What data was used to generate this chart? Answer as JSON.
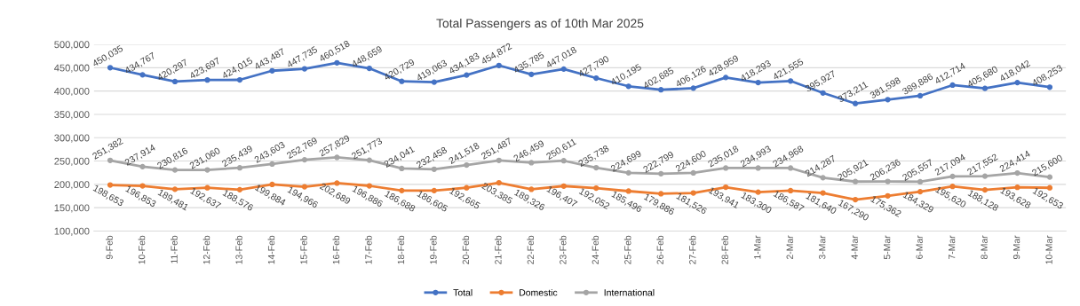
{
  "chart_data": {
    "type": "line",
    "title": "Total Passengers as of 10th Mar 2025",
    "categories": [
      "9-Feb",
      "10-Feb",
      "11-Feb",
      "12-Feb",
      "13-Feb",
      "14-Feb",
      "15-Feb",
      "16-Feb",
      "17-Feb",
      "18-Feb",
      "19-Feb",
      "20-Feb",
      "21-Feb",
      "22-Feb",
      "23-Feb",
      "24-Feb",
      "25-Feb",
      "26-Feb",
      "27-Feb",
      "28-Feb",
      "1-Mar",
      "2-Mar",
      "3-Mar",
      "4-Mar",
      "5-Mar",
      "6-Mar",
      "7-Mar",
      "8-Mar",
      "9-Mar",
      "10-Mar"
    ],
    "series": [
      {
        "name": "Total",
        "color": "#4472c4",
        "values": [
          450035,
          434767,
          420297,
          423697,
          424015,
          443487,
          447735,
          460518,
          448659,
          420729,
          419063,
          434183,
          454872,
          435785,
          447018,
          427790,
          410195,
          402685,
          406126,
          428959,
          418293,
          421555,
          395927,
          373211,
          381598,
          389886,
          412714,
          405680,
          418042,
          408253
        ],
        "value_labels": [
          "450,035",
          "434,767",
          "420,297",
          "423,697",
          "424,015",
          "443,487",
          "447,735",
          "460,518",
          "448,659",
          "420,729",
          "419,063",
          "434,183",
          "454,872",
          "435,785",
          "447,018",
          "427,790",
          "410,195",
          "402,685",
          "406,126",
          "428,959",
          "418,293",
          "421,555",
          "395,927",
          "373,211",
          "381,598",
          "389,886",
          "412,714",
          "405,680",
          "418,042",
          "408,253"
        ]
      },
      {
        "name": "Domestic",
        "color": "#ed7d31",
        "values": [
          198653,
          196853,
          189481,
          192637,
          188576,
          199884,
          194966,
          202689,
          196886,
          186688,
          186605,
          192665,
          203385,
          189326,
          196407,
          192052,
          185496,
          179886,
          181526,
          193941,
          183300,
          186587,
          181640,
          167290,
          175362,
          184329,
          195620,
          188128,
          193628,
          192653
        ],
        "value_labels": [
          "198,653",
          "196,853",
          "189,481",
          "192,637",
          "188,576",
          "199,884",
          "194,966",
          "202,689",
          "196,886",
          "186,688",
          "186,605",
          "192,665",
          "203,385",
          "189,326",
          "196,407",
          "192,052",
          "185,496",
          "179,886",
          "181,526",
          "193,941",
          "183,300",
          "186,587",
          "181,640",
          "167,290",
          "175,362",
          "184,329",
          "195,620",
          "188,128",
          "193,628",
          "192,653"
        ]
      },
      {
        "name": "International",
        "color": "#a5a5a5",
        "values": [
          251382,
          237914,
          230816,
          231060,
          235439,
          243603,
          252769,
          257829,
          251773,
          234041,
          232458,
          241518,
          251487,
          246459,
          250611,
          235738,
          224699,
          222799,
          224600,
          235018,
          234993,
          234968,
          214287,
          205921,
          206236,
          205557,
          217094,
          217552,
          224414,
          215600
        ],
        "value_labels": [
          "251,382",
          "237,914",
          "230,816",
          "231,060",
          "235,439",
          "243,603",
          "252,769",
          "257,829",
          "251,773",
          "234,041",
          "232,458",
          "241,518",
          "251,487",
          "246,459",
          "250,611",
          "235,738",
          "224,699",
          "222,799",
          "224,600",
          "235,018",
          "234,993",
          "234,968",
          "214,287",
          "205,921",
          "206,236",
          "205,557",
          "217,094",
          "217,552",
          "224,414",
          "215,600"
        ]
      }
    ],
    "ylim": [
      100000,
      500000
    ],
    "yticks": [
      {
        "value": 100000,
        "label": "100,000"
      },
      {
        "value": 150000,
        "label": "150,000"
      },
      {
        "value": 200000,
        "label": "200,000"
      },
      {
        "value": 250000,
        "label": "250,000"
      },
      {
        "value": 300000,
        "label": "300,000"
      },
      {
        "value": 350000,
        "label": "350,000"
      },
      {
        "value": 400000,
        "label": "400,000"
      },
      {
        "value": 450000,
        "label": "450,000"
      },
      {
        "value": 500000,
        "label": "500,000"
      }
    ],
    "grid": "y",
    "legend": "bottom",
    "marker": "circle",
    "line_style": "solid"
  }
}
